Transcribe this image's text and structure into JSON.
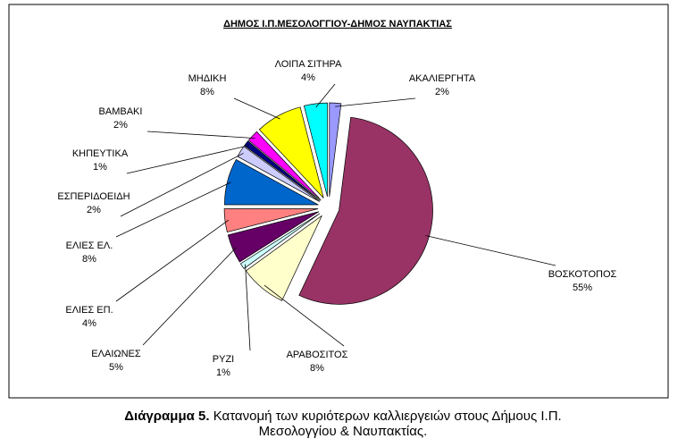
{
  "chart_data": {
    "type": "pie",
    "title": "ΔΗΜΟΣ Ι.Π.ΜΕΣΟΛΟΓΓΙΟΥ-ΔΗΜΟΣ ΝΑΥΠΑΚΤΙΑΣ",
    "categories": [
      "ΑΚΑΛΙΕΡΓΗΤΑ",
      "ΒΟΣΚΟΤΟΠΟΣ",
      "ΑΡΑΒΟΣΙΤΟΣ",
      "ΡΥΖΙ",
      "ΕΛΑΙΩΝΕΣ",
      "ΕΛΙΕΣ ΕΠ.",
      "ΕΛΙΕΣ ΕΛ.",
      "ΕΣΠΕΡΙΔΟΕΙΔΗ",
      "ΚΗΠΕΥΤΙΚΑ",
      "ΒΑΜΒΑΚΙ",
      "ΜΗΔΙΚΗ",
      "ΛΟΙΠΑ ΣΙΤΗΡΑ"
    ],
    "values": [
      2,
      55,
      8,
      1,
      5,
      4,
      8,
      2,
      1,
      2,
      8,
      4
    ],
    "value_labels": [
      "2%",
      "55%",
      "8%",
      "1%",
      "5%",
      "4%",
      "8%",
      "2%",
      "1%",
      "2%",
      "8%",
      "4%"
    ],
    "colors": [
      "#9999ff",
      "#993366",
      "#ffffcc",
      "#ccffff",
      "#660066",
      "#ff8080",
      "#0066cc",
      "#ccccff",
      "#000080",
      "#ff00ff",
      "#ffff00",
      "#00ffff"
    ]
  },
  "caption": {
    "label": "Διάγραμμα 5.",
    "line1": "Κατανομή των κυριότερων καλλιεργειών στους Δήμους Ι.Π.",
    "line2": "Μεσολογγίου & Ναυπακτίας."
  }
}
